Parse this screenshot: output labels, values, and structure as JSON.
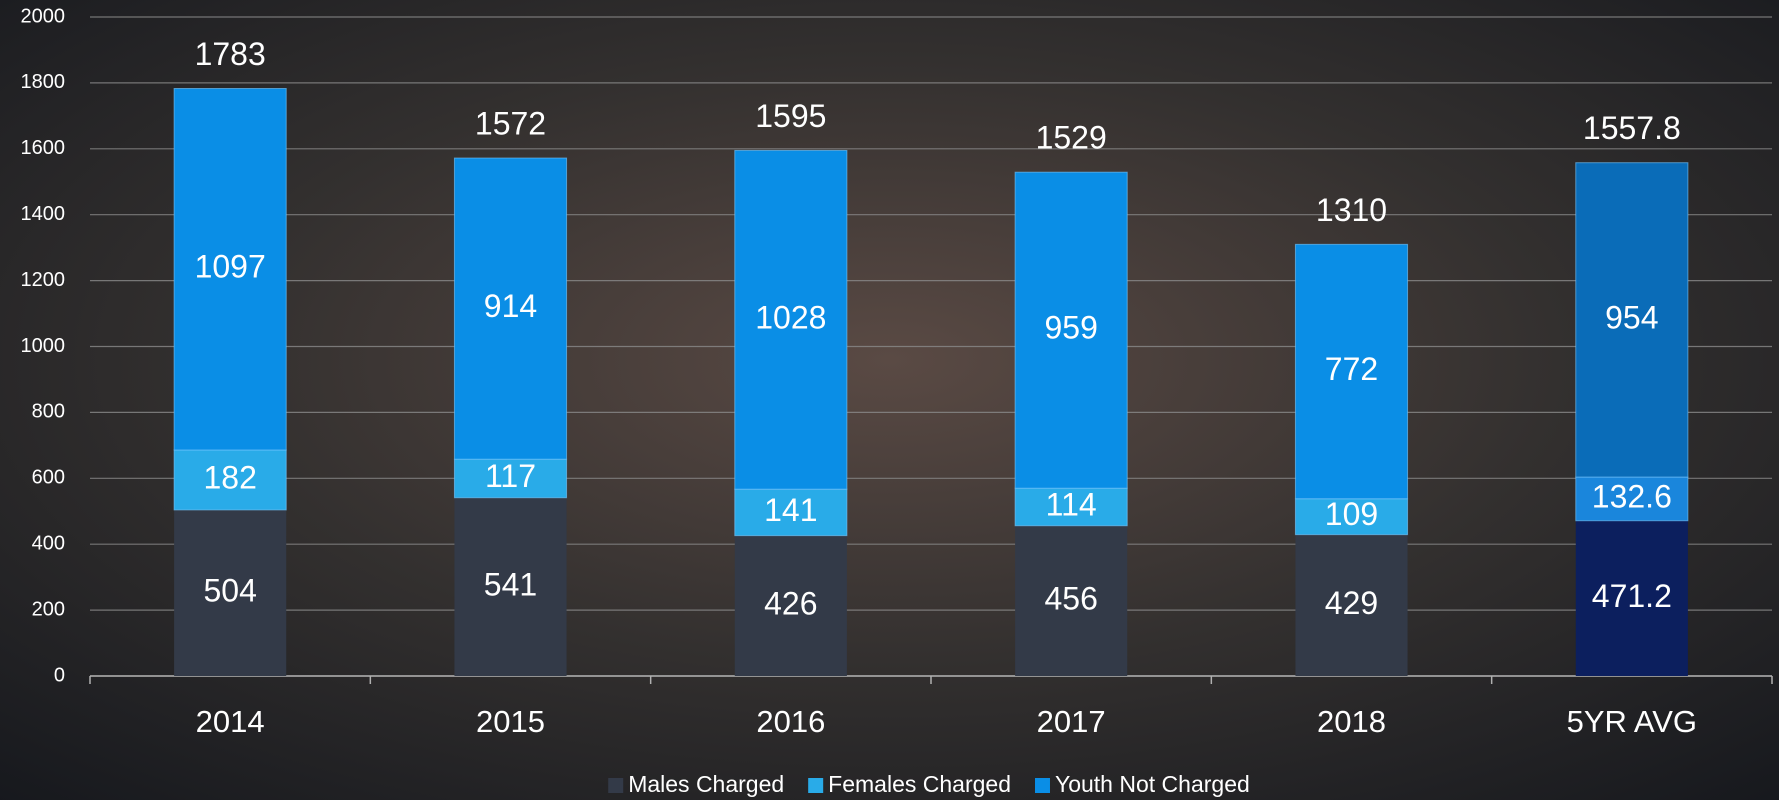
{
  "chart_data": {
    "type": "stacked_bar",
    "categories": [
      "2014",
      "2015",
      "2016",
      "2017",
      "2018",
      "5YR AVG"
    ],
    "series": [
      {
        "name": "Males Charged",
        "color": "#333a48",
        "colors": [
          "#333a48",
          "#333a48",
          "#333a48",
          "#333a48",
          "#333a48",
          "#0c1f5e"
        ],
        "values": [
          504,
          541,
          426,
          456,
          429,
          471.2
        ]
      },
      {
        "name": "Females Charged",
        "color": "#29abe8",
        "colors": [
          "#29abe8",
          "#29abe8",
          "#29abe8",
          "#29abe8",
          "#29abe8",
          "#1a86dc"
        ],
        "values": [
          182,
          117,
          141,
          114,
          109,
          132.6
        ]
      },
      {
        "name": "Youth Not Charged",
        "color": "#0a8ee6",
        "colors": [
          "#0a8ee6",
          "#0a8ee6",
          "#0a8ee6",
          "#0a8ee6",
          "#0a8ee6",
          "#0a6cb8"
        ],
        "values": [
          1097,
          914,
          1028,
          959,
          772,
          954
        ]
      }
    ],
    "totals": [
      1783,
      1572,
      1595,
      1529,
      1310,
      1557.8
    ],
    "ylim": [
      0,
      2000
    ],
    "yticks": [
      0,
      200,
      400,
      600,
      800,
      1000,
      1200,
      1400,
      1600,
      1800,
      2000
    ],
    "grid": true,
    "legend": "bottom"
  }
}
